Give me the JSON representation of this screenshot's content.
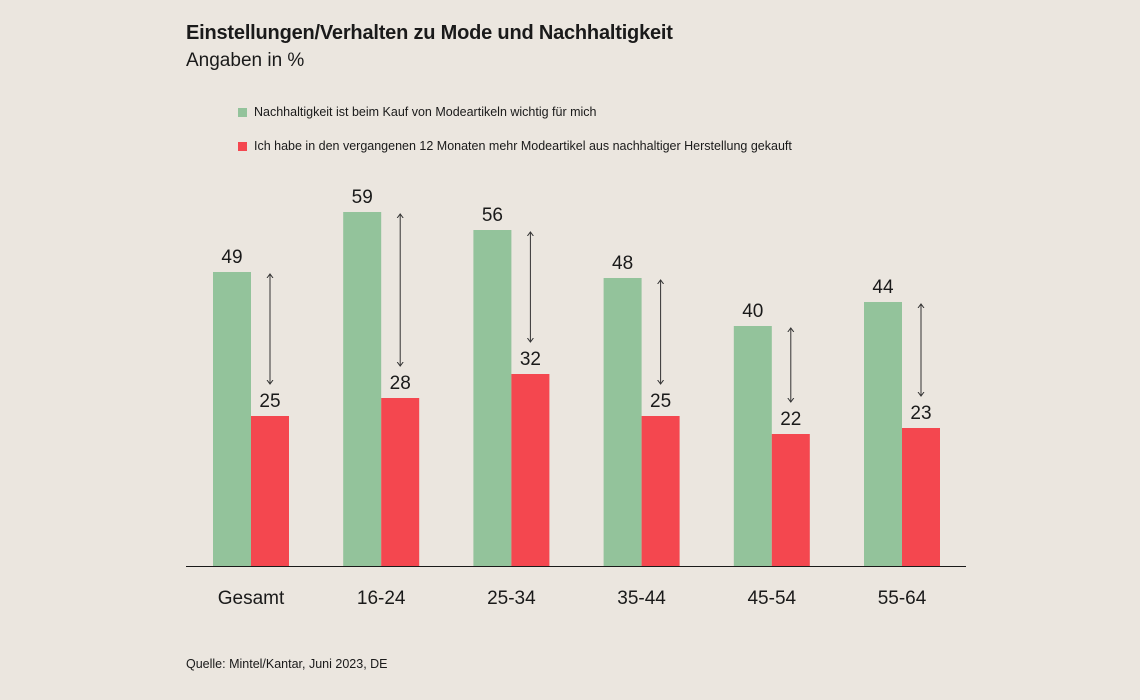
{
  "header": {
    "title": "Einstellungen/Verhalten zu Mode und Nachhaltigkeit",
    "subtitle": "Angaben in %"
  },
  "legend": {
    "items": [
      {
        "label": "Nachhaltigkeit ist beim Kauf von Modeartikeln wichtig für mich",
        "color": "#93c39b"
      },
      {
        "label": "Ich habe in den vergangenen 12 Monaten mehr Modeartikel aus nachhaltiger Herstellung gekauft",
        "color": "#f4474f"
      }
    ]
  },
  "footer": {
    "source": "Quelle: Mintel/Kantar, Juni 2023, DE"
  },
  "chart_data": {
    "type": "bar",
    "categories": [
      "Gesamt",
      "16-24",
      "25-34",
      "35-44",
      "45-54",
      "55-64"
    ],
    "series": [
      {
        "name": "Nachhaltigkeit ist beim Kauf von Modeartikeln wichtig für mich",
        "values": [
          49,
          59,
          56,
          48,
          40,
          44
        ],
        "color": "#93c39b"
      },
      {
        "name": "Ich habe in den vergangenen 12 Monaten mehr Modeartikel aus nachhaltiger Herstellung gekauft",
        "values": [
          25,
          28,
          32,
          25,
          22,
          23
        ],
        "color": "#f4474f"
      }
    ],
    "title": "Einstellungen/Verhalten zu Mode und Nachhaltigkeit",
    "ylabel": "Angaben in %",
    "ylim": [
      0,
      60
    ],
    "grid": false,
    "legend_position": "top",
    "gap_arrows": true
  }
}
